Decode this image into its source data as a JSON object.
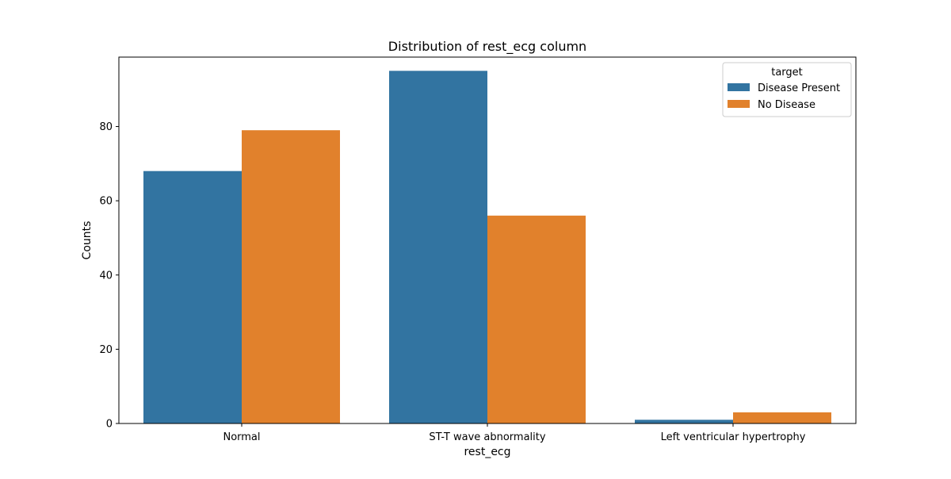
{
  "chart_data": {
    "type": "bar",
    "title": "Distribution of rest_ecg column",
    "xlabel": "rest_ecg",
    "ylabel": "Counts",
    "categories": [
      "Normal",
      "ST-T wave abnormality",
      "Left ventricular hypertrophy"
    ],
    "series": [
      {
        "name": "Disease Present",
        "values": [
          68,
          95,
          1
        ],
        "color": "#3274a1"
      },
      {
        "name": "No Disease",
        "values": [
          79,
          56,
          3
        ],
        "color": "#e1812c"
      }
    ],
    "ylim": [
      0,
      98.7
    ],
    "yticks": [
      0,
      20,
      40,
      60,
      80
    ],
    "grid": false,
    "legend": {
      "title": "target",
      "placement": "top-right"
    }
  }
}
